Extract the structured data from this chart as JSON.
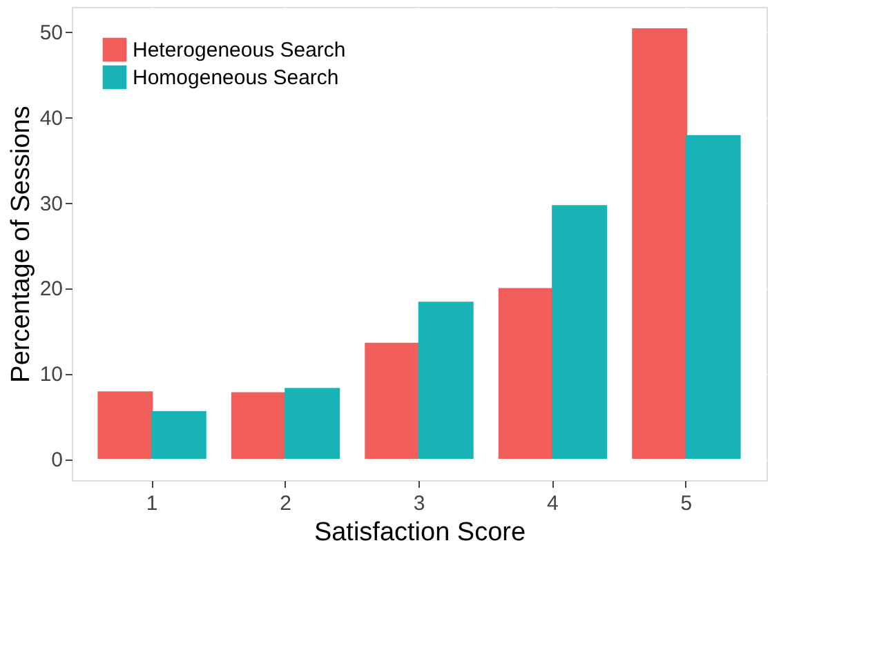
{
  "chart_data": {
    "type": "bar",
    "xlabel": "Satisfaction Score",
    "ylabel": "Percentage of Sessions",
    "categories": [
      "1",
      "2",
      "3",
      "4",
      "5"
    ],
    "series": [
      {
        "name": "Heterogeneous Search",
        "color": "#f25f5a",
        "values": [
          7.9,
          7.8,
          13.6,
          20.0,
          50.4
        ]
      },
      {
        "name": "Homogeneous Search",
        "color": "#18b3b6",
        "values": [
          5.6,
          8.3,
          18.4,
          29.7,
          37.9
        ]
      }
    ],
    "ylim": [
      -2.5,
      52.9
    ],
    "yticks": [
      0,
      10,
      20,
      30,
      40,
      50
    ],
    "grid": true,
    "legend": "top left"
  }
}
